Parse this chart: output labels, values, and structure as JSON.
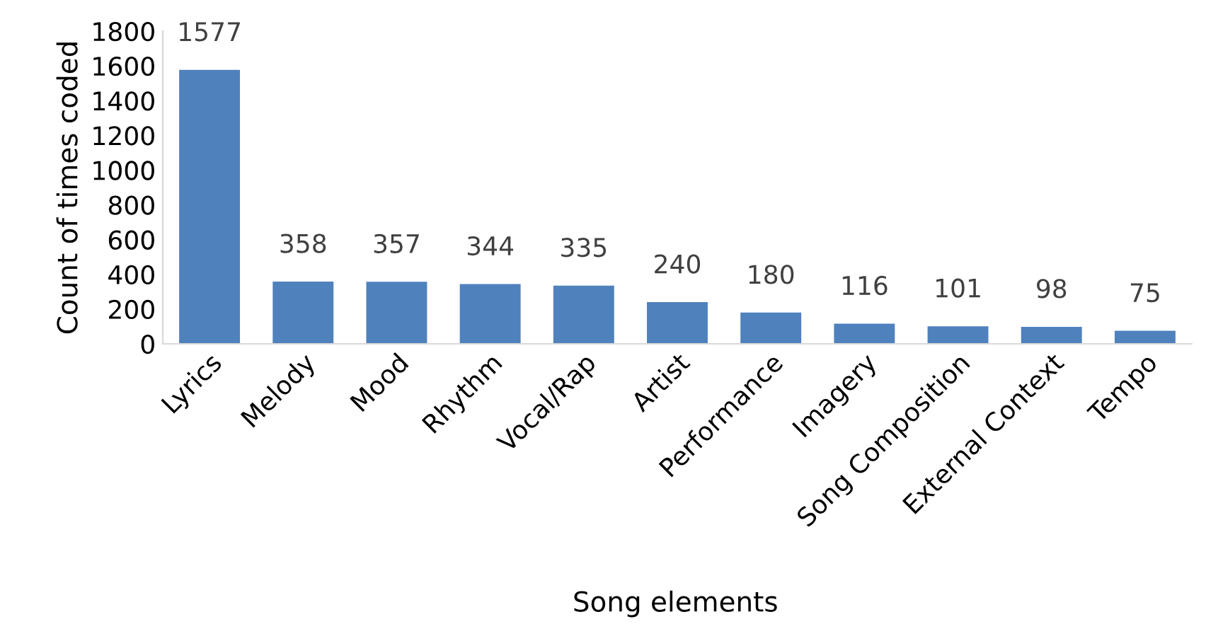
{
  "chart_data": {
    "type": "bar",
    "xlabel": "Song elements",
    "ylabel": "Count of times coded",
    "categories": [
      "Lyrics",
      "Melody",
      "Mood",
      "Rhythm",
      "Vocal/Rap",
      "Artist",
      "Performance",
      "Imagery",
      "Song Composition",
      "External Context",
      "Tempo"
    ],
    "values": [
      1577,
      358,
      357,
      344,
      335,
      240,
      180,
      116,
      101,
      98,
      75
    ],
    "color": "#4f81bd",
    "ylim": [
      0,
      1800
    ],
    "yticks": [
      0,
      200,
      400,
      600,
      800,
      1000,
      1200,
      1400,
      1600,
      1800
    ],
    "data_labels": true,
    "grid": false
  }
}
